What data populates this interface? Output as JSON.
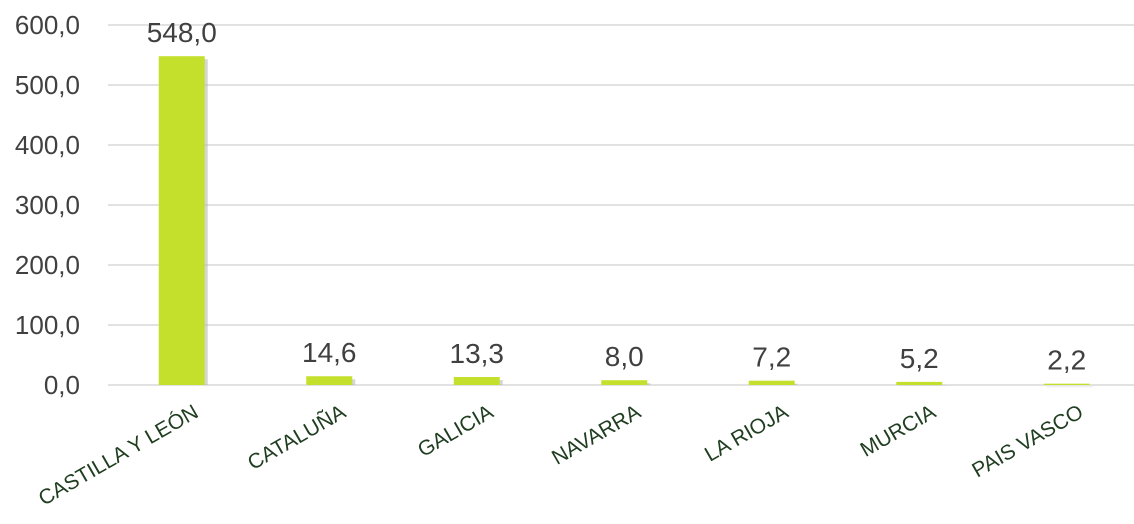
{
  "chart_data": {
    "type": "bar",
    "categories": [
      "CASTILLA Y LEÓN",
      "CATALUÑA",
      "GALICIA",
      "NAVARRA",
      "LA RIOJA",
      "MURCIA",
      "PAIS VASCO"
    ],
    "values": [
      548.0,
      14.6,
      13.3,
      8.0,
      7.2,
      5.2,
      2.2
    ],
    "value_labels": [
      "548,0",
      "14,6",
      "13,3",
      "8,0",
      "7,2",
      "5,2",
      "2,2"
    ],
    "y_ticks": [
      "0,0",
      "100,0",
      "200,0",
      "300,0",
      "400,0",
      "500,0",
      "600,0"
    ],
    "ylim": [
      0,
      600
    ],
    "grid": true,
    "legend": "none",
    "bar_color": "#c5e02c",
    "bar_shadow_color": "#b4b4b4",
    "tick_label_color": "#1f3d1f",
    "data_label_color": "#404040"
  }
}
